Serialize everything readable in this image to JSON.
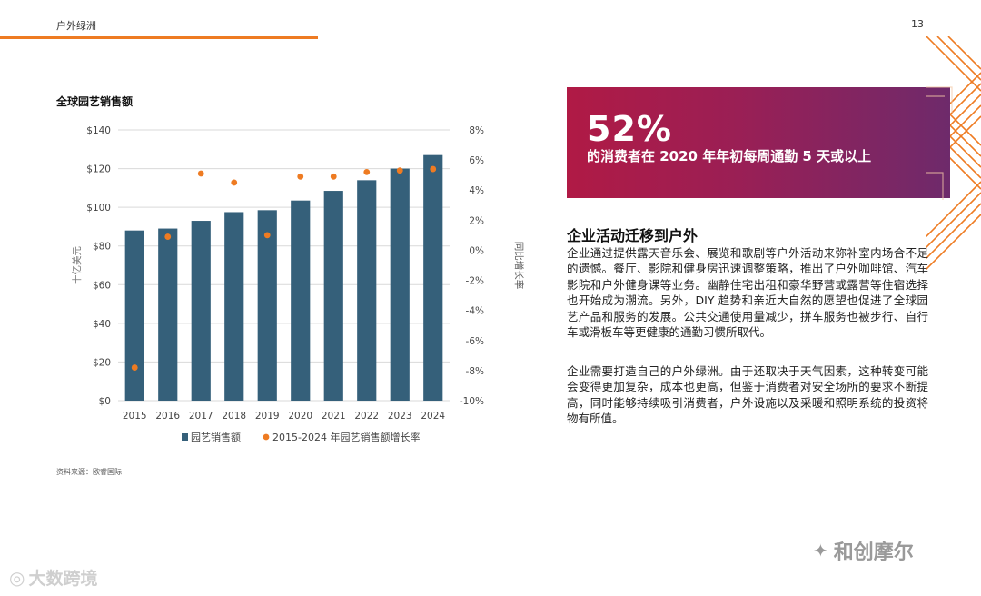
{
  "header": {
    "title": "户外绿洲",
    "page_number": "13"
  },
  "chart_title": "全球园艺销售额",
  "chart_data": {
    "type": "bar",
    "categories": [
      "2015",
      "2016",
      "2017",
      "2018",
      "2019",
      "2020",
      "2021",
      "2022",
      "2023",
      "2024"
    ],
    "series": [
      {
        "name": "园艺销售额",
        "type": "bar",
        "axis": "left",
        "color": "#35607a",
        "values": [
          88,
          89,
          93,
          97.5,
          98.5,
          103.5,
          108.5,
          114,
          120,
          127
        ]
      },
      {
        "name": "2015-2024 年园艺销售额增长率",
        "type": "scatter",
        "axis": "right",
        "color": "#ee7b22",
        "values": [
          -7.8,
          0.9,
          5.1,
          4.5,
          1.0,
          4.9,
          4.9,
          5.2,
          5.3,
          5.4
        ]
      }
    ],
    "ylabel": "十亿美元",
    "y2label": "同比增长率",
    "ylim": [
      0,
      140
    ],
    "y2lim": [
      -10,
      8
    ],
    "yticks": [
      "$0",
      "$20",
      "$40",
      "$60",
      "$80",
      "$100",
      "$120",
      "$140"
    ],
    "y2ticks": [
      "-10%",
      "-8%",
      "-6%",
      "-4%",
      "-2%",
      "0%",
      "2%",
      "4%",
      "6%",
      "8%"
    ],
    "grid": true,
    "legend_position": "bottom"
  },
  "source": "资料来源：欧睿国际",
  "callout": {
    "number": "52%",
    "text": "的消费者在 2020 年年初每周通勤 5 天或以上"
  },
  "section": {
    "heading": "企业活动迁移到户外",
    "paragraph1": "企业通过提供露天音乐会、展览和歌剧等户外活动来弥补室内场合不足的遗憾。餐厅、影院和健身房迅速调整策略，推出了户外咖啡馆、汽车影院和户外健身课等业务。幽静住宅出租和豪华野营或露营等住宿选择也开始成为潮流。另外，DIY 趋势和亲近大自然的愿望也促进了全球园艺产品和服务的发展。公共交通使用量减少，拼车服务也被步行、自行车或滑板车等更健康的通勤习惯所取代。",
    "paragraph2": "企业需要打造自己的户外绿洲。由于还取决于天气因素，这种转变可能会变得更加复杂，成本也更高，但鉴于消费者对安全场所的要求不断提高，同时能够持续吸引消费者，户外设施以及采暖和照明系统的投资将物有所值。"
  },
  "watermarks": {
    "right": "和创摩尔",
    "left": "大数跨境"
  },
  "colors": {
    "accent": "#ee7b22",
    "bar": "#35607a",
    "callout_start": "#b01a45",
    "callout_end": "#6e2a6b"
  }
}
